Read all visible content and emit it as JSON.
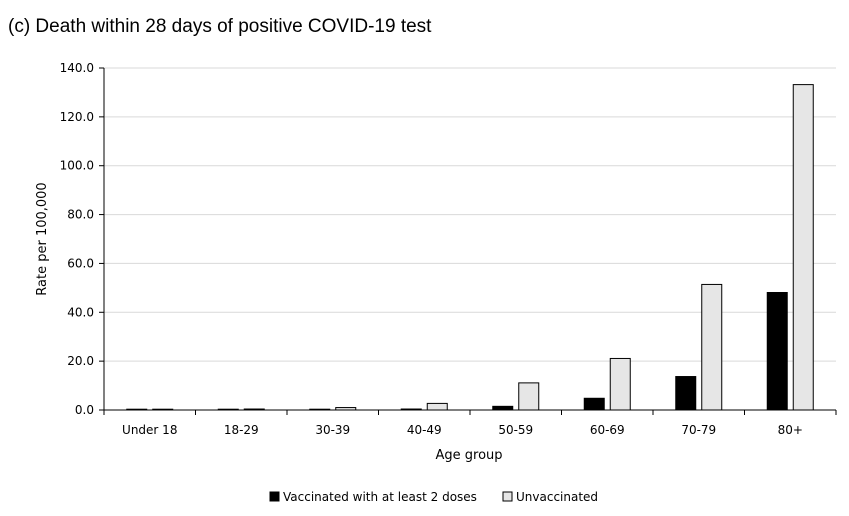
{
  "chart_data": {
    "type": "bar",
    "title": "(c) Death within 28 days of positive COVID-19 test",
    "xlabel": "Age group",
    "ylabel": "Rate per 100,000",
    "ylim": [
      0,
      140
    ],
    "yticks": [
      "0.0",
      "20.0",
      "40.0",
      "60.0",
      "80.0",
      "100.0",
      "120.0",
      "140.0"
    ],
    "ytick_values": [
      0,
      20,
      40,
      60,
      80,
      100,
      120,
      140
    ],
    "grid": true,
    "legend_position": "bottom-center",
    "categories": [
      "Under 18",
      "18-29",
      "30-39",
      "40-49",
      "50-59",
      "60-69",
      "70-79",
      "80+"
    ],
    "series": [
      {
        "name": "Vaccinated with at least 2 doses",
        "color": "#000000",
        "values": [
          0.0,
          0.1,
          0.2,
          0.4,
          1.5,
          4.8,
          13.7,
          48.1
        ]
      },
      {
        "name": "Unvaccinated",
        "color": "#e6e6e6",
        "values": [
          0.1,
          0.4,
          1.0,
          2.7,
          11.1,
          21.1,
          51.4,
          133.2
        ]
      }
    ]
  }
}
